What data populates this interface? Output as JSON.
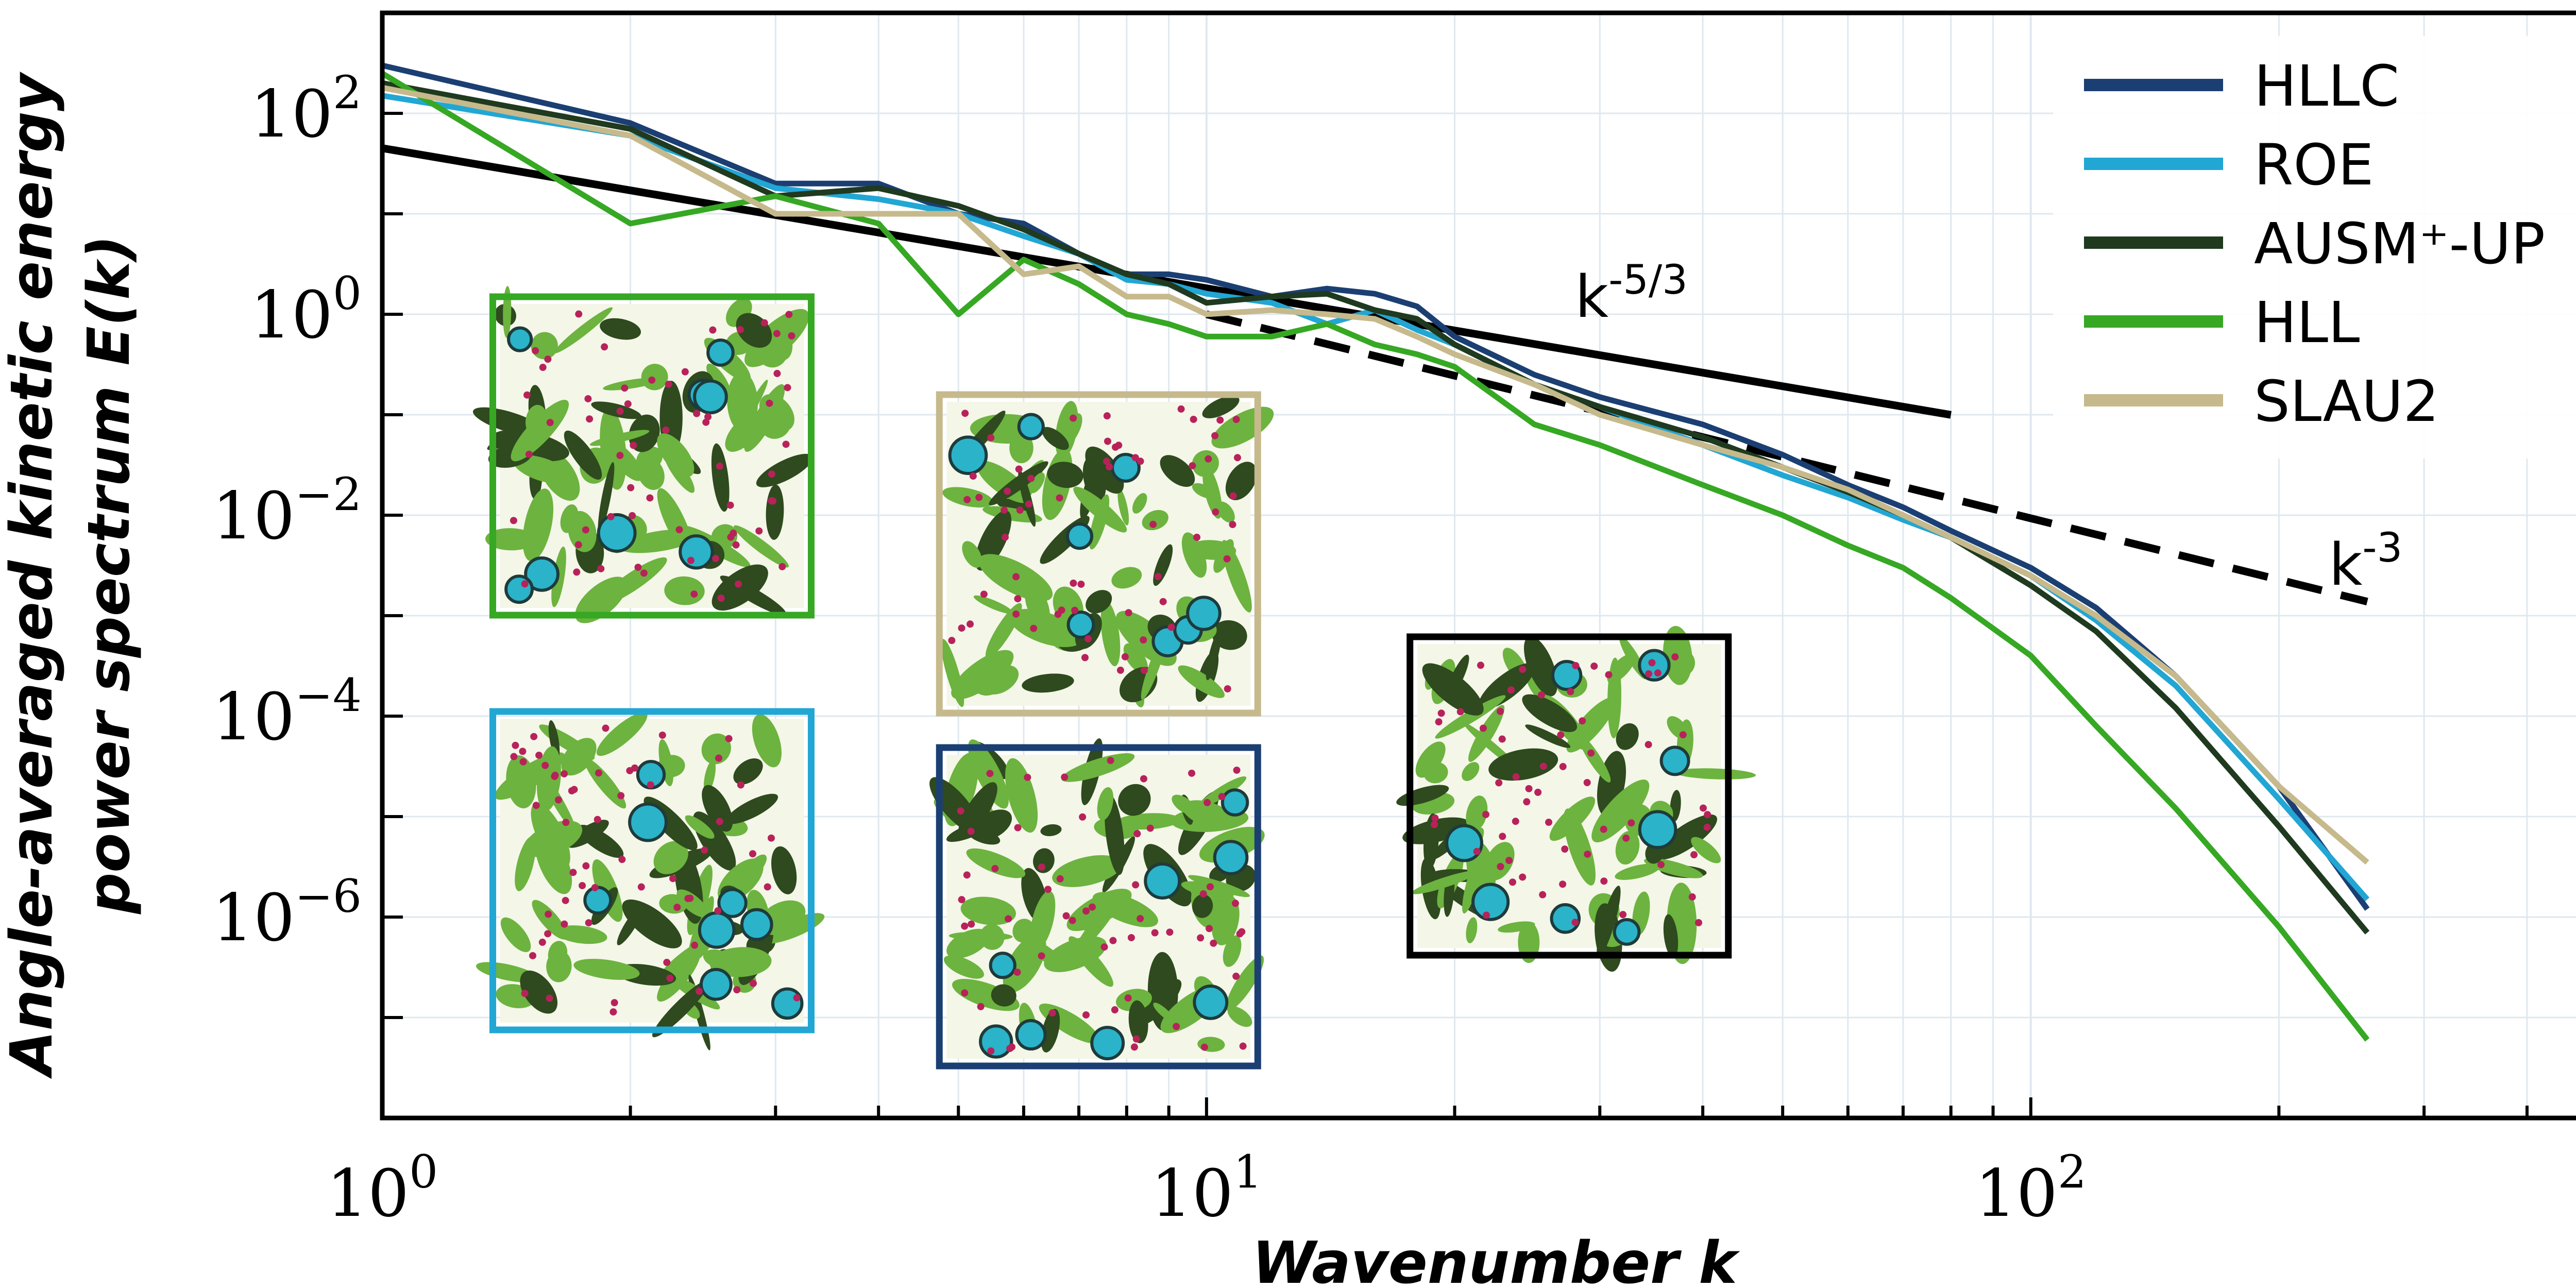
{
  "chart_data": {
    "type": "line",
    "x_scale": "log",
    "y_scale": "log",
    "xlim": [
      1,
      500
    ],
    "ylim": [
      1e-08,
      1000.0
    ],
    "xlabel": "Wavenumber k",
    "ylabel_line1": "Angle-averaged kinetic energy",
    "ylabel_line2": "power spectrum E(k)",
    "x_ticks": [
      {
        "value": 1,
        "base": "10",
        "exp": "0"
      },
      {
        "value": 10,
        "base": "10",
        "exp": "1"
      },
      {
        "value": 100,
        "base": "10",
        "exp": "2"
      }
    ],
    "y_ticks": [
      {
        "value": 100,
        "base": "10",
        "exp": "2"
      },
      {
        "value": 1,
        "base": "10",
        "exp": "0"
      },
      {
        "value": 0.01,
        "base": "10",
        "exp": "−2"
      },
      {
        "value": 0.0001,
        "base": "10",
        "exp": "−4"
      },
      {
        "value": 1e-06,
        "base": "10",
        "exp": "−6"
      }
    ],
    "grid": true,
    "legend_position": "top-right",
    "series": [
      {
        "name": "HLLC",
        "color": "#1b3f73",
        "x": [
          1,
          2,
          3,
          4,
          5,
          6,
          7,
          8,
          9,
          10,
          12,
          14,
          16,
          18,
          20,
          25,
          30,
          40,
          50,
          60,
          70,
          80,
          100,
          120,
          150,
          200,
          256
        ],
        "y": [
          300,
          80,
          20,
          20,
          10,
          8,
          4,
          2.5,
          2.5,
          2.2,
          1.5,
          1.8,
          1.6,
          1.2,
          0.6,
          0.25,
          0.15,
          0.08,
          0.04,
          0.02,
          0.012,
          0.007,
          0.003,
          0.0012,
          0.00025,
          2e-05,
          1.2e-06
        ]
      },
      {
        "name": "ROE",
        "color": "#22a6d4",
        "x": [
          1,
          2,
          3,
          4,
          5,
          6,
          7,
          8,
          9,
          10,
          12,
          14,
          16,
          18,
          20,
          25,
          30,
          40,
          50,
          60,
          70,
          80,
          100,
          120,
          150,
          200,
          256
        ],
        "y": [
          150,
          60,
          18,
          14,
          10,
          6,
          4,
          2.2,
          2,
          1.6,
          1.3,
          0.8,
          1.1,
          0.7,
          0.5,
          0.2,
          0.12,
          0.05,
          0.025,
          0.015,
          0.009,
          0.006,
          0.0025,
          0.0009,
          0.0002,
          1.5e-05,
          1.5e-06
        ]
      },
      {
        "name": "AUSM⁺-UP",
        "color": "#1f3a1f",
        "x": [
          1,
          2,
          3,
          4,
          5,
          6,
          7,
          8,
          9,
          10,
          12,
          14,
          16,
          18,
          20,
          25,
          30,
          40,
          50,
          60,
          70,
          80,
          100,
          120,
          150,
          200,
          256
        ],
        "y": [
          200,
          70,
          15,
          18,
          12,
          7,
          4,
          2.5,
          2,
          1.3,
          1.5,
          1.6,
          1.1,
          0.9,
          0.5,
          0.2,
          0.12,
          0.06,
          0.03,
          0.017,
          0.01,
          0.006,
          0.002,
          0.0007,
          0.00012,
          8e-06,
          7e-07
        ]
      },
      {
        "name": "HLL",
        "color": "#36a823",
        "x": [
          1,
          2,
          3,
          4,
          5,
          6,
          7,
          8,
          9,
          10,
          12,
          14,
          16,
          18,
          20,
          25,
          30,
          40,
          50,
          60,
          70,
          80,
          100,
          120,
          150,
          200,
          256
        ],
        "y": [
          250,
          8,
          15,
          8,
          1,
          3.5,
          2,
          1,
          0.8,
          0.6,
          0.6,
          0.8,
          0.5,
          0.4,
          0.3,
          0.08,
          0.05,
          0.02,
          0.01,
          0.005,
          0.003,
          0.0015,
          0.0004,
          8e-05,
          1.2e-05,
          8e-07,
          6e-08
        ]
      },
      {
        "name": "SLAU2",
        "color": "#c6b98c",
        "x": [
          1,
          2,
          3,
          4,
          5,
          6,
          7,
          8,
          9,
          10,
          12,
          14,
          16,
          18,
          20,
          25,
          30,
          40,
          50,
          60,
          70,
          80,
          100,
          120,
          150,
          200,
          256
        ],
        "y": [
          180,
          60,
          10,
          10,
          10,
          2.5,
          3,
          1.5,
          1.5,
          1,
          1.1,
          1,
          0.9,
          0.6,
          0.4,
          0.2,
          0.1,
          0.05,
          0.03,
          0.018,
          0.01,
          0.006,
          0.0025,
          0.001,
          0.00025,
          2e-05,
          3.5e-06
        ]
      }
    ],
    "reference_lines": [
      {
        "label_base": "k",
        "label_exp": "-5/3",
        "style": "solid",
        "x": [
          1,
          80
        ],
        "y": [
          45,
          0.0997
        ]
      },
      {
        "label_base": "k",
        "label_exp": "-3",
        "style": "dashed",
        "x": [
          10,
          256
        ],
        "y": [
          1.0,
          0.00138
        ]
      }
    ],
    "inset_frame_colors": [
      "#36a823",
      "#22a6d4",
      "#c6b98c",
      "#1b3f73",
      "#000000"
    ]
  }
}
